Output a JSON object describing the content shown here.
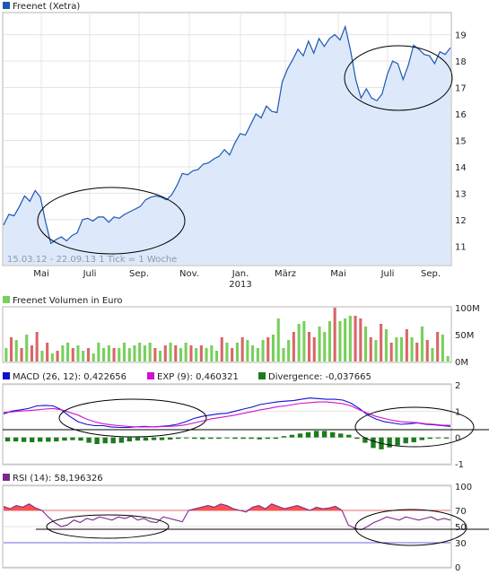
{
  "colors": {
    "price_line": "#1c57b5",
    "price_fill": "#dde9fa",
    "vol_up": "#78d05c",
    "vol_down": "#d9666a",
    "macd": "#1010d0",
    "exp": "#d010d0",
    "divergence": "#1e7a1e",
    "rsi": "#7a2a8a",
    "rsi_fill": "#ff5050",
    "grid": "#e4e4e4",
    "legend_price": "#1c57b5",
    "legend_vol": "#78d05c",
    "legend_macd": "#1010d0",
    "legend_exp": "#d010d0",
    "legend_div": "#1e7a1e",
    "legend_rsi": "#7a2a8a"
  },
  "price_panel": {
    "title": "Freenet (Xetra)",
    "range_note": "15.03.12 - 22.09.13",
    "tick_note": "1 Tick = 1 Woche"
  },
  "x_axis": {
    "months": [
      "Mai",
      "Juli",
      "Sep.",
      "Nov.",
      "Jan.",
      "März",
      "Mai",
      "Juli",
      "Sep."
    ],
    "year_label": "2013"
  },
  "volume_panel": {
    "title": "Freenet Volumen in Euro"
  },
  "macd_panel": {
    "macd_label": "MACD (26, 12): 0,422656",
    "exp_label": "EXP (9): 0,460321",
    "div_label": "Divergence: -0,037665"
  },
  "rsi_panel": {
    "rsi_label": "RSI (14): 58,196326"
  },
  "chart_data": [
    {
      "type": "area",
      "title": "Freenet (Xetra)",
      "xlabel": "",
      "ylabel": "",
      "x_start": "15.03.12",
      "x_end": "22.09.13",
      "ylim": [
        10.3,
        19.8
      ],
      "yticks": [
        11,
        12,
        13,
        14,
        15,
        16,
        17,
        18,
        19
      ],
      "series": [
        {
          "name": "Freenet (Xetra)",
          "values": [
            11.8,
            12.2,
            12.15,
            12.5,
            12.9,
            12.7,
            13.1,
            12.85,
            11.9,
            11.1,
            11.25,
            11.35,
            11.2,
            11.4,
            11.5,
            12.0,
            12.05,
            11.95,
            12.1,
            12.1,
            11.9,
            12.1,
            12.05,
            12.2,
            12.3,
            12.4,
            12.5,
            12.75,
            12.85,
            12.9,
            12.85,
            12.75,
            12.95,
            13.3,
            13.75,
            13.7,
            13.85,
            13.9,
            14.1,
            14.15,
            14.3,
            14.4,
            14.65,
            14.45,
            14.9,
            15.25,
            15.2,
            15.6,
            16.0,
            15.85,
            16.3,
            16.1,
            16.05,
            17.2,
            17.7,
            18.05,
            18.45,
            18.2,
            18.75,
            18.3,
            18.85,
            18.55,
            18.85,
            19.0,
            18.8,
            19.3,
            18.4,
            17.3,
            16.6,
            16.95,
            16.6,
            16.5,
            16.75,
            17.5,
            18.0,
            17.9,
            17.3,
            17.85,
            18.6,
            18.45,
            18.25,
            18.2,
            17.9,
            18.35,
            18.25,
            18.5
          ]
        }
      ]
    },
    {
      "type": "bar",
      "title": "Freenet Volumen in Euro",
      "ylim": [
        0,
        100
      ],
      "yticks": [
        "0M",
        "50M",
        "100M"
      ],
      "series": [
        {
          "values": [
            25,
            45,
            40,
            25,
            50,
            30,
            55,
            20,
            35,
            15,
            20,
            30,
            35,
            25,
            30,
            20,
            25,
            15,
            35,
            25,
            30,
            25,
            25,
            35,
            25,
            30,
            35,
            30,
            35,
            25,
            20,
            30,
            35,
            30,
            25,
            35,
            30,
            25,
            30,
            25,
            30,
            20,
            45,
            35,
            25,
            35,
            45,
            40,
            30,
            25,
            40,
            45,
            50,
            80,
            25,
            40,
            55,
            70,
            75,
            55,
            45,
            65,
            55,
            75,
            100,
            75,
            80,
            85,
            85,
            80,
            65,
            45,
            40,
            70,
            60,
            35,
            45,
            45,
            60,
            45,
            35,
            65,
            40,
            25,
            55,
            50,
            10
          ],
          "directions": [
            1,
            0,
            1,
            0,
            1,
            0,
            0,
            1,
            0,
            1,
            0,
            1,
            1,
            0,
            1,
            1,
            0,
            1,
            1,
            1,
            1,
            0,
            1,
            1,
            1,
            1,
            1,
            1,
            1,
            0,
            1,
            0,
            1,
            0,
            1,
            1,
            0,
            1,
            0,
            1,
            1,
            1,
            0,
            1,
            0,
            1,
            0,
            1,
            1,
            1,
            1,
            0,
            1,
            1,
            1,
            1,
            0,
            1,
            1,
            0,
            0,
            1,
            1,
            1,
            0,
            1,
            1,
            1,
            0,
            0,
            1,
            0,
            1,
            0,
            1,
            0,
            1,
            1,
            0,
            1,
            0,
            1,
            0,
            1,
            0,
            1,
            1
          ]
        }
      ]
    },
    {
      "type": "line",
      "title": "MACD (26, 12)",
      "ylim": [
        -1,
        2
      ],
      "yticks": [
        -1,
        0,
        1,
        2
      ],
      "series": [
        {
          "name": "MACD (26, 12): 0,422656",
          "values": [
            0.9,
            1.0,
            1.05,
            1.1,
            1.2,
            1.22,
            1.2,
            1.05,
            0.8,
            0.6,
            0.5,
            0.45,
            0.45,
            0.4,
            0.38,
            0.38,
            0.4,
            0.42,
            0.4,
            0.42,
            0.45,
            0.5,
            0.6,
            0.72,
            0.8,
            0.85,
            0.9,
            0.92,
            1.0,
            1.08,
            1.15,
            1.25,
            1.3,
            1.35,
            1.38,
            1.4,
            1.45,
            1.5,
            1.48,
            1.45,
            1.45,
            1.42,
            1.3,
            1.1,
            0.85,
            0.7,
            0.6,
            0.55,
            0.5,
            0.52,
            0.55,
            0.5,
            0.48,
            0.45,
            0.42
          ]
        },
        {
          "name": "EXP (9): 0,460321",
          "values": [
            0.95,
            0.97,
            1.0,
            1.02,
            1.05,
            1.08,
            1.1,
            1.05,
            0.95,
            0.85,
            0.7,
            0.6,
            0.52,
            0.48,
            0.45,
            0.42,
            0.4,
            0.4,
            0.4,
            0.41,
            0.42,
            0.44,
            0.48,
            0.55,
            0.62,
            0.7,
            0.75,
            0.8,
            0.85,
            0.92,
            0.98,
            1.05,
            1.1,
            1.16,
            1.2,
            1.25,
            1.3,
            1.32,
            1.35,
            1.35,
            1.32,
            1.28,
            1.2,
            1.05,
            0.92,
            0.8,
            0.72,
            0.65,
            0.6,
            0.58,
            0.56,
            0.52,
            0.5,
            0.47,
            0.46
          ]
        },
        {
          "name": "Divergence: -0,037665",
          "type": "bar",
          "values": [
            -0.15,
            -0.15,
            -0.17,
            -0.18,
            -0.16,
            -0.16,
            -0.15,
            -0.12,
            -0.1,
            -0.12,
            -0.2,
            -0.25,
            -0.22,
            -0.22,
            -0.2,
            -0.15,
            -0.12,
            -0.12,
            -0.1,
            -0.1,
            -0.08,
            -0.05,
            -0.03,
            -0.05,
            -0.06,
            -0.05,
            -0.05,
            -0.03,
            -0.05,
            -0.05,
            -0.05,
            -0.07,
            -0.05,
            -0.05,
            0.05,
            0.1,
            0.15,
            0.2,
            0.25,
            0.25,
            0.2,
            0.15,
            0.1,
            -0.05,
            -0.2,
            -0.4,
            -0.45,
            -0.38,
            -0.3,
            -0.22,
            -0.18,
            -0.1,
            -0.05,
            -0.03,
            -0.04
          ]
        }
      ]
    },
    {
      "type": "line",
      "title": "RSI (14)",
      "ylim": [
        0,
        100
      ],
      "yticks": [
        0,
        30,
        50,
        70,
        100
      ],
      "series": [
        {
          "name": "RSI (14): 58,196326",
          "values": [
            75,
            72,
            76,
            74,
            78,
            73,
            70,
            62,
            55,
            50,
            52,
            58,
            55,
            60,
            58,
            62,
            60,
            58,
            62,
            60,
            63,
            58,
            60,
            56,
            55,
            62,
            60,
            58,
            56,
            70,
            72,
            74,
            76,
            74,
            78,
            76,
            72,
            70,
            68,
            74,
            76,
            72,
            78,
            75,
            72,
            74,
            76,
            73,
            70,
            74,
            72,
            73,
            75,
            70,
            52,
            48,
            46,
            50,
            55,
            58,
            62,
            60,
            58,
            62,
            60,
            58,
            60,
            62,
            58,
            60,
            58
          ]
        }
      ]
    }
  ]
}
